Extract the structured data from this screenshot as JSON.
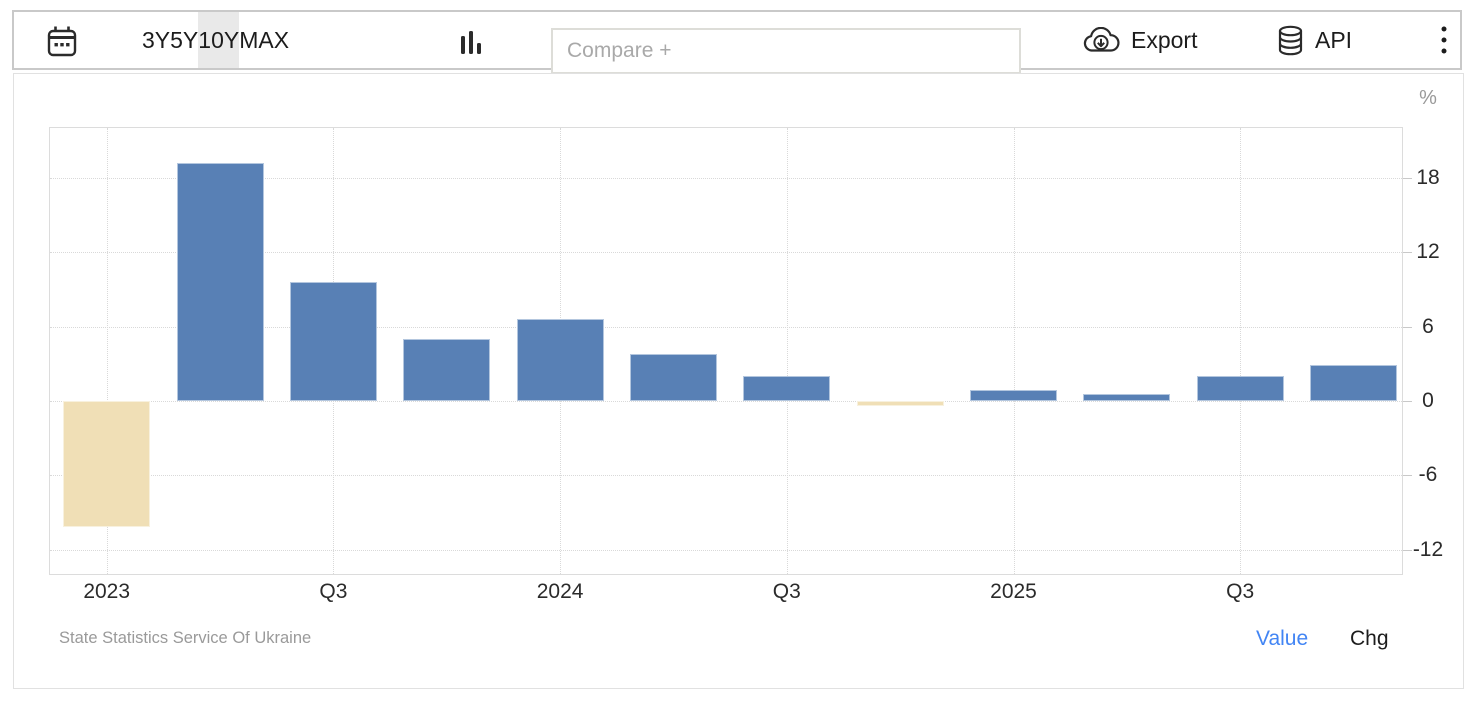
{
  "toolbar": {
    "ranges": [
      {
        "label": "3Y",
        "active": false
      },
      {
        "label": "5Y",
        "active": false
      },
      {
        "label": "10Y",
        "active": true
      },
      {
        "label": "MAX",
        "active": false
      }
    ],
    "compare_placeholder": "Compare +",
    "export_label": "Export",
    "api_label": "API"
  },
  "chart_data": {
    "type": "bar",
    "title": "",
    "unit_label": "%",
    "x_axis_labels": [
      "2023",
      "Q3",
      "2024",
      "Q3",
      "2025",
      "Q3"
    ],
    "periods": [
      "Q1 2023",
      "Q2 2023",
      "Q3 2023",
      "Q4 2023",
      "Q1 2024",
      "Q2 2024",
      "Q3 2024",
      "Q4 2024",
      "Q1 2025",
      "Q2 2025",
      "Q3 2025",
      "Q4 2025"
    ],
    "values": [
      -10.2,
      19.2,
      9.6,
      5.0,
      6.6,
      3.8,
      2.0,
      -0.4,
      0.9,
      0.6,
      2.0,
      2.9
    ],
    "yticks": [
      18,
      12,
      6,
      0,
      -6,
      -12
    ],
    "ylim": [
      -14.1,
      22.1
    ],
    "grid": "dotted",
    "legend": "none",
    "bar_color_positive": "#5880b5",
    "bar_color_negative": "#f0dfb6",
    "source": "State Statistics Service Of Ukraine"
  },
  "footer": {
    "value_label": "Value",
    "chg_label": "Chg",
    "value_active_color": "#4285f4"
  }
}
